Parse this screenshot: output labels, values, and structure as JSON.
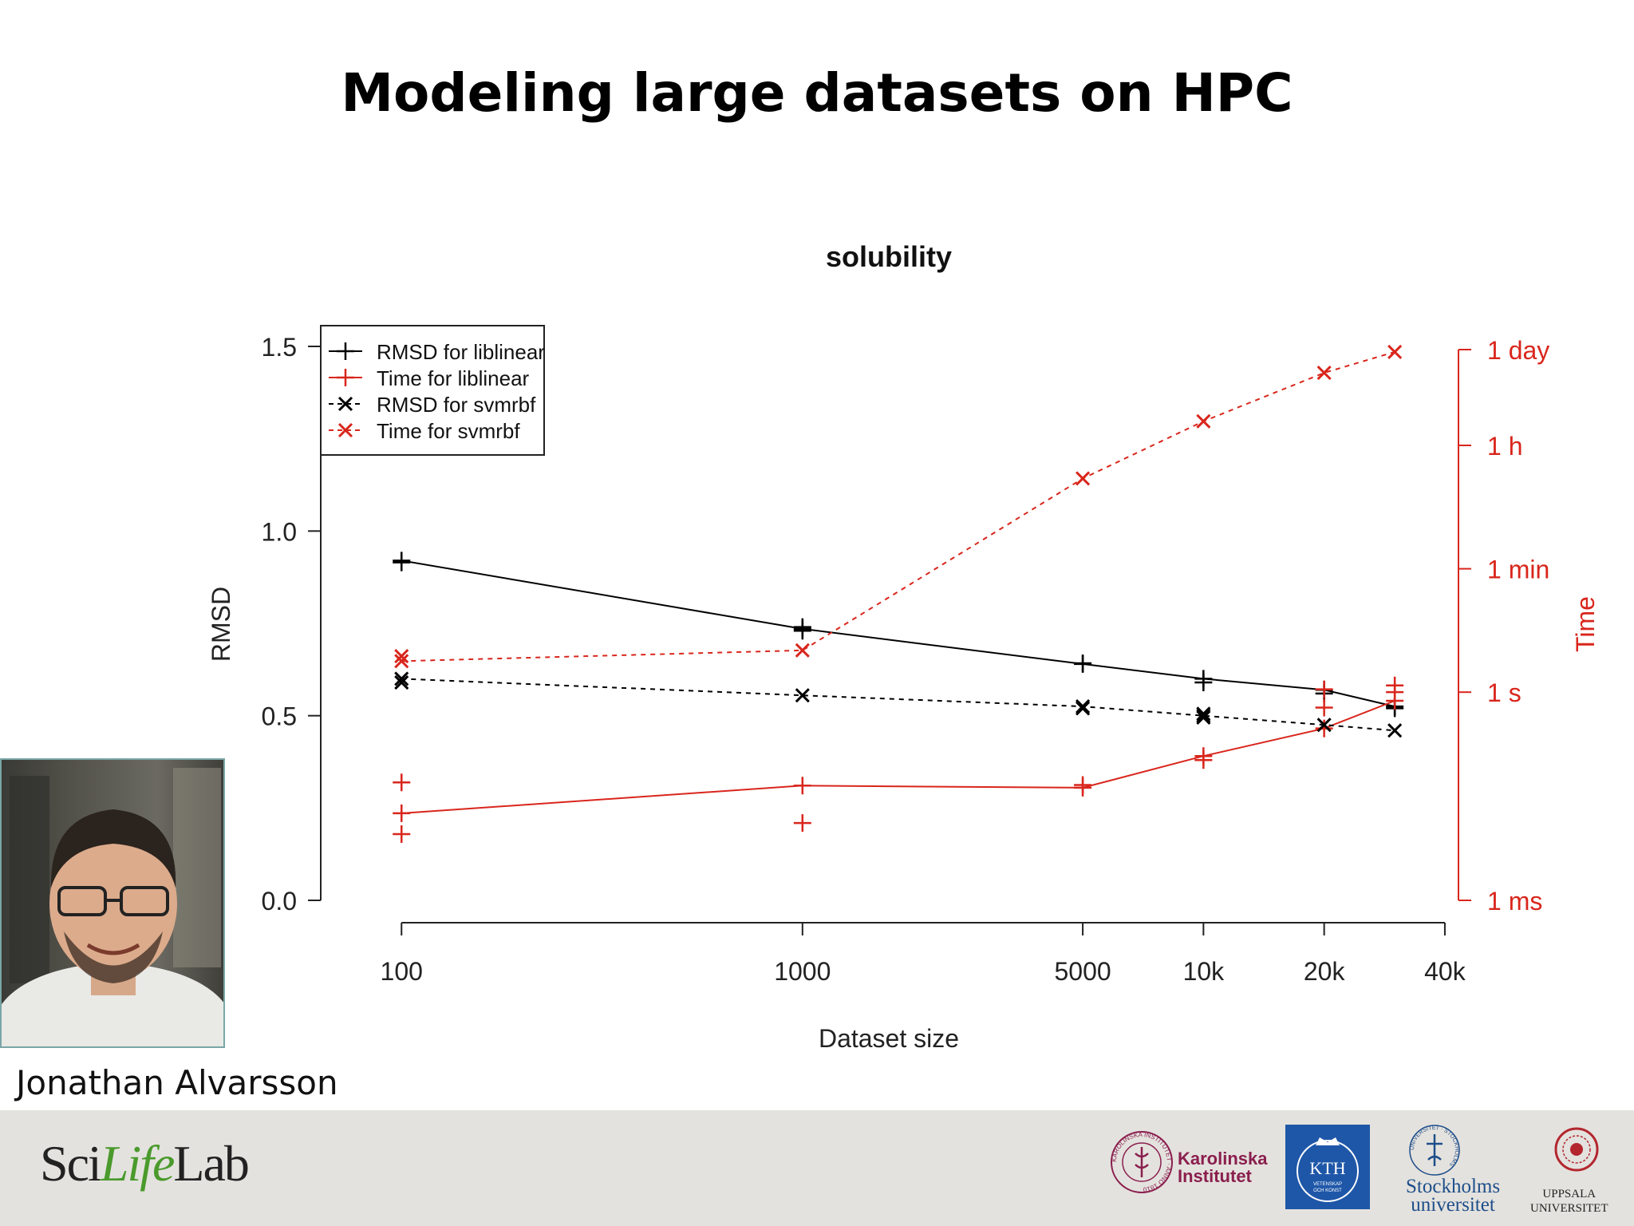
{
  "slide": {
    "title": "Modeling large datasets on HPC",
    "photo_caption": "Jonathan Alvarsson"
  },
  "footer": {
    "scilifelab": {
      "sci": "Sci",
      "life": "Life",
      "lab": "Lab"
    },
    "ki": {
      "line1": "Karolinska",
      "line2": "Institutet",
      "ring_text": "KAROLINSKA INSTITUTET · ANNO 1810",
      "color": "#8a1f4e"
    },
    "kth": {
      "label": "KTH",
      "sub1": "VETENSKAP",
      "sub2": "OCH KONST",
      "color": "#1f57a8"
    },
    "su": {
      "line1": "Stockholms",
      "line2": "universitet",
      "ring_text": "UNIVERSITET · STOCKHOLMS",
      "color": "#1e4e8a"
    },
    "uu": {
      "line1": "UPPSALA",
      "line2": "UNIVERSITET",
      "color": "#b3262e"
    }
  },
  "chart_data": {
    "type": "line",
    "title": "solubility",
    "xlabel": "Dataset size",
    "ylabel": "RMSD",
    "y2label": "Time",
    "x_scale": "log",
    "x_ticks": [
      {
        "value": 100,
        "label": "100"
      },
      {
        "value": 1000,
        "label": "1000"
      },
      {
        "value": 5000,
        "label": "5000"
      },
      {
        "value": 10000,
        "label": "10k"
      },
      {
        "value": 20000,
        "label": "20k"
      },
      {
        "value": 40000,
        "label": "40k"
      }
    ],
    "ylim": [
      0,
      1.5
    ],
    "y_ticks": [
      {
        "value": 0,
        "label": "0.0"
      },
      {
        "value": 0.5,
        "label": "0.5"
      },
      {
        "value": 1.0,
        "label": "1.0"
      },
      {
        "value": 1.5,
        "label": "1.5"
      }
    ],
    "y2_scale": "log",
    "y2_unit": "seconds",
    "y2_ticks": [
      {
        "value": 0.001,
        "label": "1 ms"
      },
      {
        "value": 1,
        "label": "1 s"
      },
      {
        "value": 60,
        "label": "1 min"
      },
      {
        "value": 3600,
        "label": "1 h"
      },
      {
        "value": 86400,
        "label": "1 day"
      }
    ],
    "legend_position": "top-left",
    "grid": false,
    "series": [
      {
        "name": "RMSD for liblinear",
        "axis": "left",
        "color": "#000000",
        "dashed": false,
        "marker": "plus",
        "x": [
          100,
          1000,
          5000,
          10000,
          20000,
          30000
        ],
        "y": [
          0.92,
          0.735,
          0.64,
          0.6,
          0.57,
          0.525
        ],
        "replicates": [
          {
            "x": 100,
            "y": 0.915
          },
          {
            "x": 1000,
            "y": 0.74
          },
          {
            "x": 1000,
            "y": 0.73
          },
          {
            "x": 5000,
            "y": 0.642
          },
          {
            "x": 10000,
            "y": 0.59
          },
          {
            "x": 20000,
            "y": 0.56
          },
          {
            "x": 30000,
            "y": 0.52
          }
        ]
      },
      {
        "name": "Time for liblinear",
        "axis": "right",
        "color": "#d9261c",
        "dashed": false,
        "marker": "plus",
        "x": [
          100,
          1000,
          5000,
          10000,
          20000,
          30000
        ],
        "y": [
          0.018,
          0.045,
          0.042,
          0.12,
          0.3,
          0.75
        ],
        "replicates": [
          {
            "x": 100,
            "y": 0.05
          },
          {
            "x": 100,
            "y": 0.009
          },
          {
            "x": 1000,
            "y": 0.013
          },
          {
            "x": 5000,
            "y": 0.046
          },
          {
            "x": 10000,
            "y": 0.105
          },
          {
            "x": 20000,
            "y": 0.6
          },
          {
            "x": 20000,
            "y": 1.1
          },
          {
            "x": 30000,
            "y": 1.0
          },
          {
            "x": 30000,
            "y": 1.25
          }
        ]
      },
      {
        "name": "RMSD for svmrbf",
        "axis": "left",
        "color": "#000000",
        "dashed": true,
        "marker": "x",
        "x": [
          100,
          1000,
          5000,
          10000,
          20000,
          30000
        ],
        "y": [
          0.6,
          0.555,
          0.525,
          0.5,
          0.475,
          0.46
        ],
        "replicates": [
          {
            "x": 100,
            "y": 0.59
          },
          {
            "x": 5000,
            "y": 0.52
          },
          {
            "x": 10000,
            "y": 0.505
          },
          {
            "x": 10000,
            "y": 0.495
          }
        ]
      },
      {
        "name": "Time for svmrbf",
        "axis": "right",
        "color": "#d9261c",
        "dashed": true,
        "marker": "x",
        "x": [
          100,
          1000,
          5000,
          10000,
          20000,
          30000
        ],
        "y": [
          2.8,
          4.0,
          1200,
          8000,
          40000,
          80000
        ],
        "replicates": [
          {
            "x": 100,
            "y": 3.3
          }
        ]
      }
    ]
  }
}
